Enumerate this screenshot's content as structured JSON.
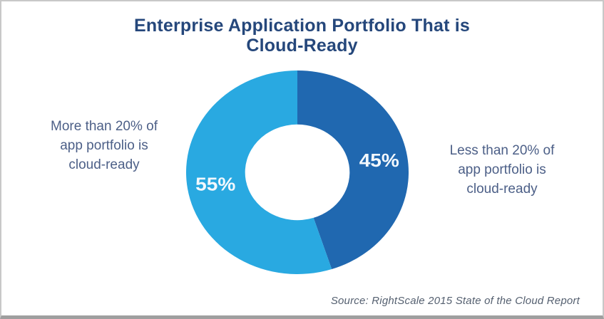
{
  "chart_data": {
    "type": "pie",
    "variant": "donut",
    "title": "Enterprise Application Portfolio That is Cloud-Ready",
    "title_lines": [
      "Enterprise Application Portfolio That is",
      "Cloud-Ready"
    ],
    "slices": [
      {
        "name": "Less than 20% of app portfolio is cloud-ready",
        "value": 45,
        "value_label": "45%",
        "color": "#2068B0"
      },
      {
        "name": "More than 20% of app portfolio is cloud-ready",
        "value": 55,
        "value_label": "55%",
        "color": "#29A9E1"
      }
    ],
    "start_angle_deg": 0,
    "direction": "clockwise",
    "inner_radius_ratio": 0.47,
    "label_radius_ratio": 0.745,
    "legend_position": "none",
    "grid": false,
    "source": "Source: RightScale 2015 State of the Cloud Report"
  },
  "annotations": {
    "left_label": {
      "lines": [
        "More than 20% of",
        "app portfolio is",
        "cloud-ready"
      ]
    },
    "right_label": {
      "lines": [
        "Less than 20% of",
        "app portfolio is",
        "cloud-ready"
      ]
    }
  },
  "styles": {
    "title_color": "#25477B",
    "annotation_color": "#4C5F87",
    "slice_label_color": "#F2F8FD",
    "source_color": "#556070",
    "border_color": "#C8C8C8",
    "border_bottom_color": "#9F9F9F",
    "background": "#FFFFFF"
  }
}
